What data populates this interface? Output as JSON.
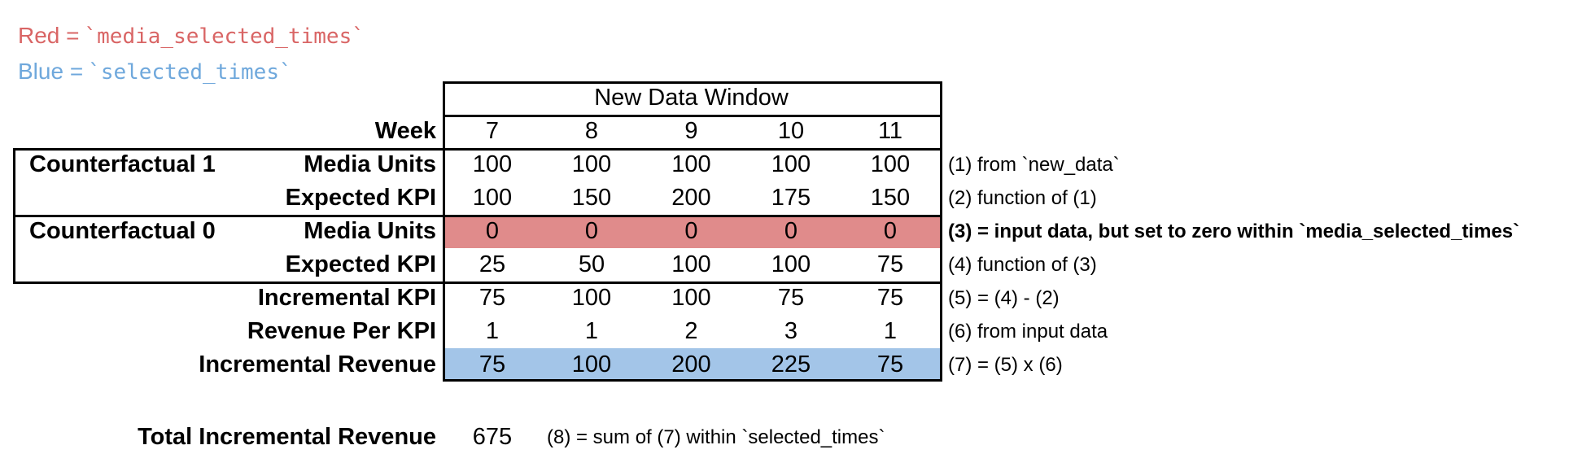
{
  "legend": {
    "red": {
      "label": "Red =",
      "code": "`media_selected_times`"
    },
    "blue": {
      "label": "Blue =",
      "code": "`selected_times`"
    }
  },
  "table": {
    "window_header": "New Data Window",
    "week_label": "Week",
    "weeks": [
      "7",
      "8",
      "9",
      "10",
      "11"
    ],
    "rows": [
      {
        "group": "Counterfactual 1",
        "label": "Media Units",
        "values": [
          "100",
          "100",
          "100",
          "100",
          "100"
        ],
        "highlight": "none",
        "annotation": "(1) from `new_data`",
        "annotation_bold": false
      },
      {
        "group": "",
        "label": "Expected KPI",
        "values": [
          "100",
          "150",
          "200",
          "175",
          "150"
        ],
        "highlight": "none",
        "annotation": "(2) function of (1)",
        "annotation_bold": false
      },
      {
        "group": "Counterfactual 0",
        "label": "Media Units",
        "values": [
          "0",
          "0",
          "0",
          "0",
          "0"
        ],
        "highlight": "red",
        "annotation": "(3) = input data, but set to zero within `media_selected_times`",
        "annotation_bold": true
      },
      {
        "group": "",
        "label": "Expected KPI",
        "values": [
          "25",
          "50",
          "100",
          "100",
          "75"
        ],
        "highlight": "none",
        "annotation": "(4) function of (3)",
        "annotation_bold": false
      },
      {
        "group": "",
        "label": "Incremental KPI",
        "values": [
          "75",
          "100",
          "100",
          "75",
          "75"
        ],
        "highlight": "none",
        "annotation": "(5) = (4) - (2)",
        "annotation_bold": false
      },
      {
        "group": "",
        "label": "Revenue Per KPI",
        "values": [
          "1",
          "1",
          "2",
          "3",
          "1"
        ],
        "highlight": "none",
        "annotation": "(6) from input data",
        "annotation_bold": false
      },
      {
        "group": "",
        "label": "Incremental Revenue",
        "values": [
          "75",
          "100",
          "200",
          "225",
          "75"
        ],
        "highlight": "blue",
        "annotation": "(7) = (5) x (6)",
        "annotation_bold": false
      }
    ]
  },
  "total": {
    "label": "Total Incremental Revenue",
    "value": "675",
    "annotation": "(8) = sum of (7) within `selected_times`"
  },
  "colors": {
    "red_fill": "#e08b8b",
    "blue_fill": "#a3c5e8",
    "red_text": "#d96565",
    "blue_text": "#6fa8dc"
  }
}
